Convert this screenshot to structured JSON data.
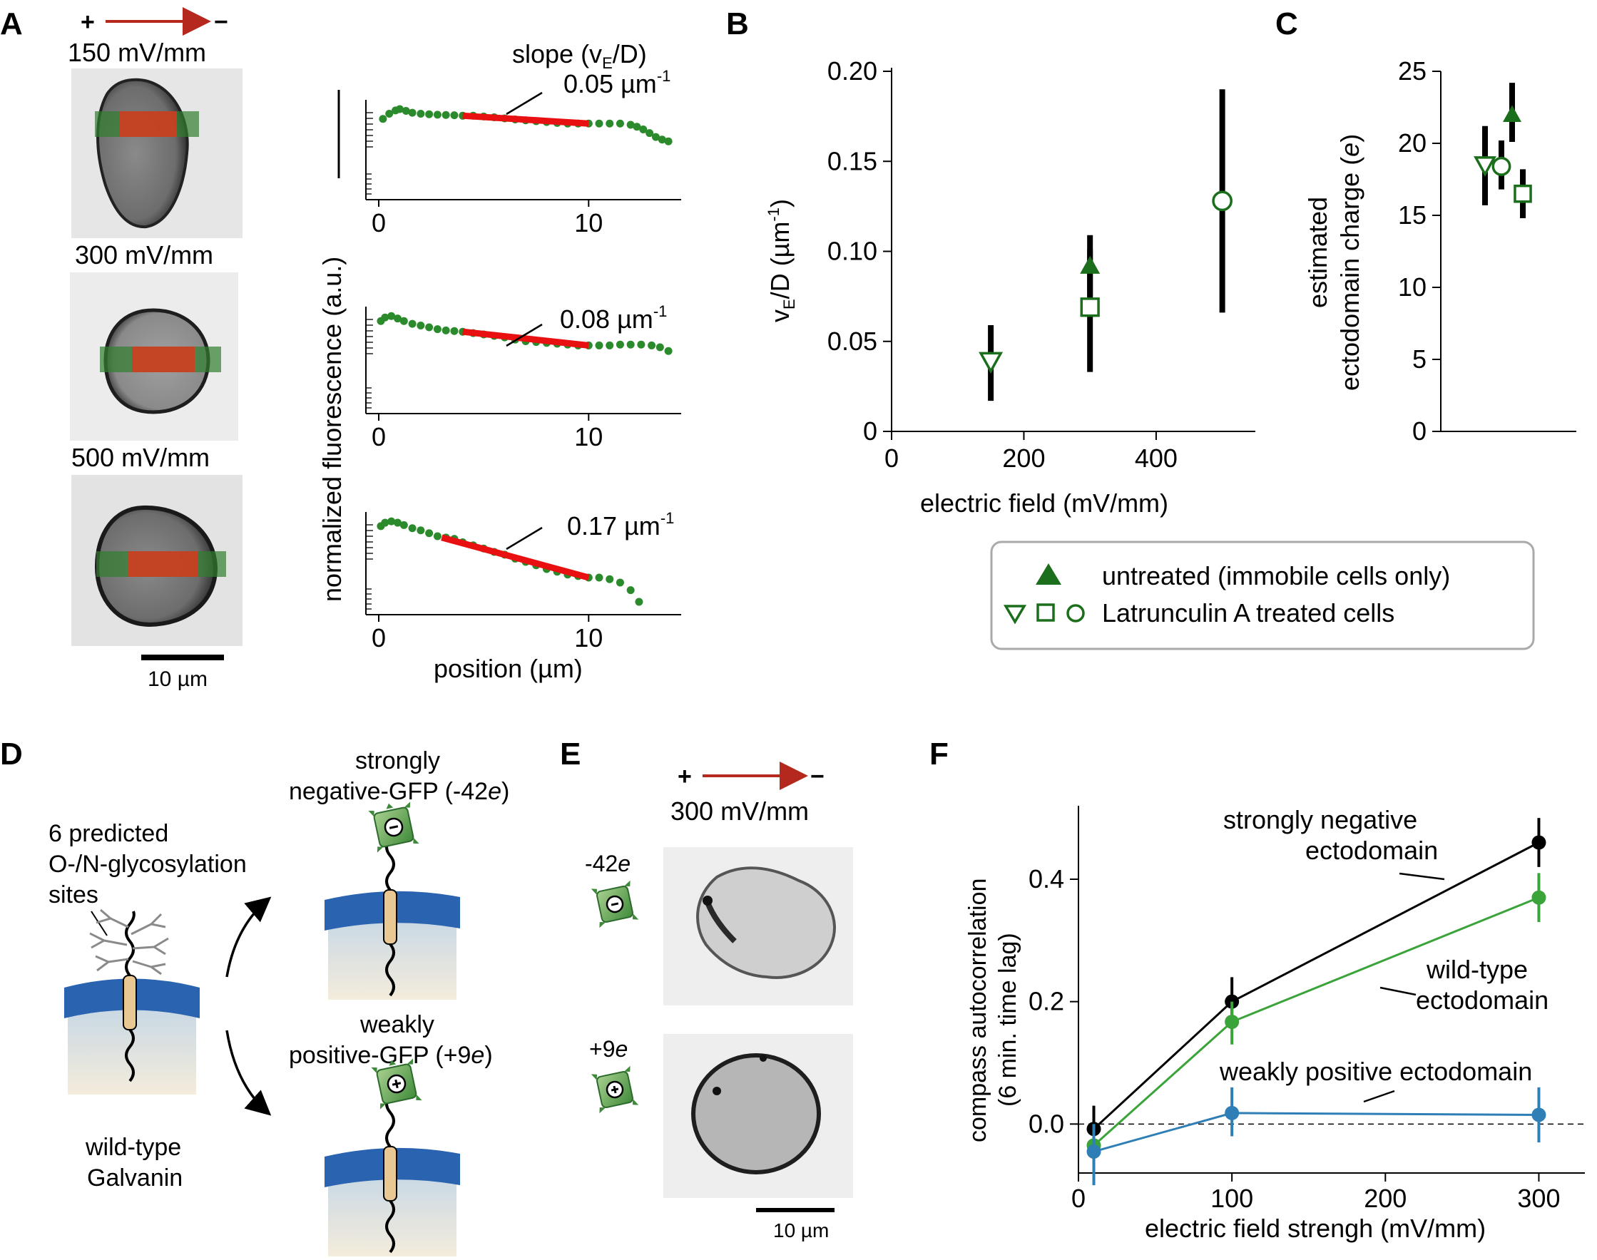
{
  "colors": {
    "dark_green": "#1b6e1b",
    "green": "#2b8a2b",
    "mid_green": "#3aa33a",
    "blue": "#2f7fb6",
    "red": "#e81010",
    "arrow_red": "#b5281e",
    "membrane_blue": "#2a64b0",
    "stalk_tan": "#e9c893"
  },
  "panel_letters": {
    "a": "A",
    "b": "B",
    "c": "C",
    "d": "D",
    "e": "E",
    "f": "F"
  },
  "panel_a": {
    "plus": "+",
    "minus": "−",
    "fields": [
      "150 mV/mm",
      "300 mV/mm",
      "500 mV/mm"
    ],
    "scale_bar": "10 µm",
    "slope_title_pre": "slope (v",
    "slope_title_sub": "E",
    "slope_title_post": "/D)",
    "slopes": [
      "0.05 µm",
      "0.08 µm",
      "0.17 µm"
    ],
    "slope_exp": "-1",
    "ylabel": "normalized fluorescence (a.u.)",
    "xlabel": "position (µm)",
    "xticks": [
      "0",
      "10"
    ]
  },
  "panel_d": {
    "glyco_lines": [
      "6 predicted",
      "O-/N-glycosylation",
      "sites"
    ],
    "wt_lines": [
      "wild-type",
      "Galvanin"
    ],
    "neg_lines": [
      "strongly",
      "negative-GFP (-42e)"
    ],
    "pos_lines": [
      "weakly",
      "positive-GFP (+9e)"
    ]
  },
  "panel_e": {
    "plus": "+",
    "minus": "−",
    "field": "300 mV/mm",
    "neg_label": "-42e",
    "pos_label": "+9e",
    "scale_bar": "10 µm"
  },
  "legend": {
    "untreated": "untreated (immobile cells only)",
    "latrunculin": "Latrunculin A treated cells"
  },
  "chart_data": [
    {
      "panel": "A",
      "type": "scatter",
      "title": "slope (vE/D)",
      "xlabel": "position (µm)",
      "ylabel": "normalized fluorescence (a.u.)",
      "y_scale": "log",
      "xlim": [
        0,
        14
      ],
      "xticks": [
        0,
        10
      ],
      "series": [
        {
          "name": "150 mV/mm",
          "slope": 0.05,
          "fit_range": [
            4,
            10
          ],
          "x": [
            0.2,
            0.5,
            0.8,
            1.0,
            1.3,
            1.6,
            2.0,
            2.4,
            2.8,
            3.2,
            3.6,
            4.0,
            4.5,
            5.0,
            5.5,
            6.0,
            6.5,
            7.0,
            7.5,
            8.0,
            8.5,
            9.0,
            9.5,
            10.0,
            10.5,
            11.0,
            11.5,
            12.0,
            12.3,
            12.6,
            12.9,
            13.2,
            13.5,
            13.8
          ],
          "y": [
            0.8,
            0.9,
            0.97,
            1.0,
            0.96,
            0.92,
            0.9,
            0.89,
            0.88,
            0.875,
            0.87,
            0.86,
            0.86,
            0.845,
            0.83,
            0.81,
            0.79,
            0.775,
            0.76,
            0.745,
            0.73,
            0.72,
            0.72,
            0.72,
            0.72,
            0.72,
            0.72,
            0.7,
            0.67,
            0.63,
            0.58,
            0.53,
            0.5,
            0.48
          ]
        },
        {
          "name": "300 mV/mm",
          "slope": 0.08,
          "fit_range": [
            4,
            10
          ],
          "x": [
            0.1,
            0.3,
            0.6,
            0.9,
            1.2,
            1.6,
            2.0,
            2.4,
            2.8,
            3.2,
            3.6,
            4.0,
            4.5,
            5.0,
            5.5,
            6.0,
            6.5,
            7.0,
            7.5,
            8.0,
            8.5,
            9.0,
            9.5,
            10.0,
            10.5,
            11.0,
            11.5,
            12.0,
            12.5,
            13.0,
            13.4,
            13.8
          ],
          "y": [
            0.9,
            0.97,
            1.0,
            0.95,
            0.9,
            0.85,
            0.82,
            0.79,
            0.76,
            0.74,
            0.73,
            0.72,
            0.7,
            0.68,
            0.66,
            0.64,
            0.61,
            0.59,
            0.58,
            0.57,
            0.56,
            0.55,
            0.54,
            0.54,
            0.54,
            0.54,
            0.55,
            0.55,
            0.55,
            0.54,
            0.52,
            0.48
          ]
        },
        {
          "name": "500 mV/mm",
          "slope": 0.17,
          "fit_range": [
            3,
            10
          ],
          "x": [
            0.1,
            0.3,
            0.6,
            0.9,
            1.2,
            1.6,
            2.0,
            2.4,
            2.8,
            3.2,
            3.6,
            4.0,
            4.5,
            5.0,
            5.5,
            6.0,
            6.5,
            7.0,
            7.5,
            8.0,
            8.5,
            9.0,
            9.5,
            10.0,
            10.5,
            11.0,
            11.5,
            12.0,
            12.4
          ],
          "y": [
            0.9,
            0.97,
            1.0,
            0.97,
            0.92,
            0.86,
            0.82,
            0.77,
            0.72,
            0.7,
            0.68,
            0.63,
            0.59,
            0.55,
            0.51,
            0.48,
            0.44,
            0.41,
            0.38,
            0.35,
            0.33,
            0.31,
            0.3,
            0.29,
            0.29,
            0.28,
            0.26,
            0.22,
            0.17
          ]
        }
      ]
    },
    {
      "panel": "B",
      "type": "scatter",
      "xlabel": "electric field (mV/mm)",
      "ylabel": "vE/D (µm-1)",
      "xlim": [
        0,
        550
      ],
      "ylim": [
        0,
        0.2
      ],
      "xticks": [
        0,
        200,
        400
      ],
      "yticks": [
        "0",
        "0.05",
        "0.10",
        "0.15",
        "0.20"
      ],
      "series": [
        {
          "name": "untreated (immobile cells only)",
          "marker": "filled-triangle-up",
          "points": [
            {
              "x": 300,
              "y": 0.092,
              "err": [
                0.075,
                0.109
              ]
            }
          ]
        },
        {
          "name": "Latrunculin A treated cells",
          "markers": [
            "open-triangle-down",
            "open-square",
            "open-circle"
          ],
          "points": [
            {
              "x": 150,
              "y": 0.039,
              "err": [
                0.017,
                0.059
              ],
              "marker": "open-triangle-down"
            },
            {
              "x": 300,
              "y": 0.069,
              "err": [
                0.033,
                0.101
              ],
              "marker": "open-square"
            },
            {
              "x": 500,
              "y": 0.128,
              "err": [
                0.066,
                0.19
              ],
              "marker": "open-circle"
            }
          ]
        }
      ]
    },
    {
      "panel": "C",
      "type": "scatter",
      "ylabel_lines": [
        "estimated",
        "ectodomain charge (e)"
      ],
      "ylim": [
        0,
        25
      ],
      "yticks": [
        0,
        5,
        10,
        15,
        20,
        25
      ],
      "points": [
        {
          "marker": "open-triangle-down",
          "y": 18.5,
          "err": [
            15.7,
            21.2
          ]
        },
        {
          "marker": "open-circle",
          "y": 18.4,
          "err": [
            16.8,
            20.2
          ]
        },
        {
          "marker": "filled-triangle-up",
          "y": 22.0,
          "err": [
            20.1,
            24.2
          ]
        },
        {
          "marker": "open-square",
          "y": 16.5,
          "err": [
            14.8,
            18.2
          ]
        }
      ]
    },
    {
      "panel": "F",
      "type": "line",
      "xlabel": "electric field strengh (mV/mm)",
      "ylabel_lines": [
        "compass autocorrelation",
        "(6 min. time lag)"
      ],
      "xlim": [
        0,
        330
      ],
      "ylim": [
        -0.08,
        0.52
      ],
      "xticks": [
        0,
        100,
        200,
        300
      ],
      "yticks": [
        "0.0",
        "0.2",
        "0.4"
      ],
      "reference_line": 0,
      "series": [
        {
          "name": "strongly negative ectodomain",
          "label_lines": [
            "strongly negative",
            "ectodomain"
          ],
          "color": "#000000",
          "x": [
            10,
            100,
            300
          ],
          "y": [
            -0.008,
            0.2,
            0.46
          ],
          "err": [
            [
              -0.06,
              0.03
            ],
            [
              0.16,
              0.24
            ],
            [
              0.42,
              0.5
            ]
          ]
        },
        {
          "name": "wild-type ectodomain",
          "label_lines": [
            "wild-type",
            "ectodomain"
          ],
          "color": "#3aa33a",
          "x": [
            10,
            100,
            300
          ],
          "y": [
            -0.035,
            0.167,
            0.37
          ],
          "err": [
            [
              -0.07,
              0.0
            ],
            [
              0.13,
              0.2
            ],
            [
              0.33,
              0.41
            ]
          ]
        },
        {
          "name": "weakly positive ectodomain",
          "label_lines": [
            "weakly positive ectodomain"
          ],
          "color": "#2f7fb6",
          "x": [
            10,
            100,
            300
          ],
          "y": [
            -0.045,
            0.018,
            0.015
          ],
          "err": [
            [
              -0.1,
              0.0
            ],
            [
              -0.02,
              0.06
            ],
            [
              -0.03,
              0.06
            ]
          ]
        }
      ]
    }
  ]
}
